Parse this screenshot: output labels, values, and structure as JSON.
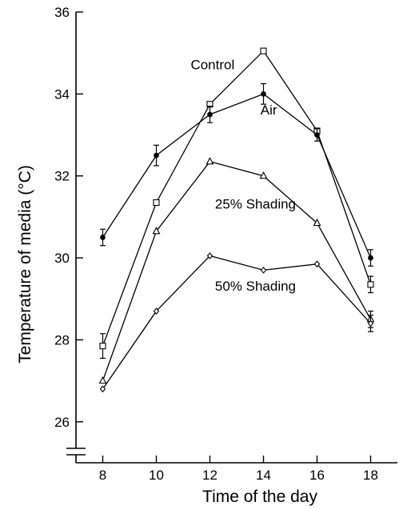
{
  "chart_data": {
    "type": "line",
    "xlabel": "Time of the day",
    "ylabel": "Temperature of media (°C)",
    "xlim": [
      7,
      19
    ],
    "ylim": [
      25,
      36
    ],
    "x_ticks": [
      8,
      10,
      12,
      14,
      16,
      18
    ],
    "y_ticks": [
      26,
      28,
      30,
      32,
      34,
      36
    ],
    "x": [
      8,
      10,
      12,
      14,
      16,
      18
    ],
    "grid": false,
    "legend": "none",
    "series": [
      {
        "name": "Control",
        "marker": "square-open",
        "values": [
          27.85,
          31.35,
          33.75,
          35.05,
          33.1,
          29.35
        ],
        "errors": [
          0.3,
          0,
          0,
          0,
          0,
          0.2
        ],
        "label_at": [
          12.1,
          34.6
        ]
      },
      {
        "name": "Air",
        "marker": "circle-filled",
        "values": [
          30.5,
          32.5,
          33.5,
          34.0,
          33.0,
          30.0
        ],
        "errors": [
          0.2,
          0.25,
          0.2,
          0.25,
          0.15,
          0.2
        ],
        "label_at": [
          14.2,
          33.5
        ]
      },
      {
        "name": "25% Shading",
        "marker": "triangle-open",
        "values": [
          27.0,
          30.65,
          32.35,
          32.0,
          30.85,
          28.5
        ],
        "errors": [
          0,
          0,
          0,
          0,
          0,
          0.2
        ],
        "label_at": [
          13.7,
          31.2
        ]
      },
      {
        "name": "50% Shading",
        "marker": "diamond-open",
        "values": [
          26.8,
          28.7,
          30.05,
          29.7,
          29.85,
          28.4
        ],
        "errors": [
          0,
          0,
          0,
          0,
          0,
          0.2
        ],
        "label_at": [
          13.7,
          29.2
        ]
      }
    ]
  }
}
